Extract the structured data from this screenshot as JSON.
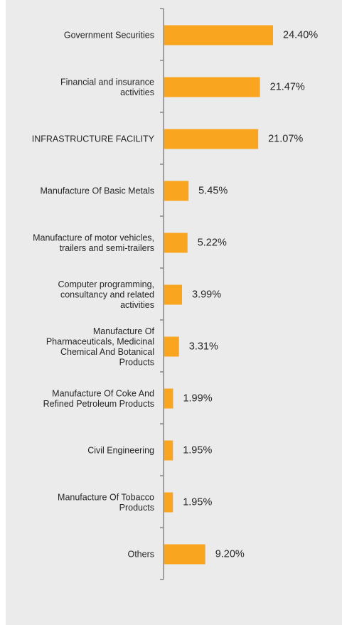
{
  "colors": {
    "bar": "#f9a51f",
    "axis": "#8c8c8c",
    "background": "#ebebeb",
    "text": "#262626"
  },
  "chart_data": {
    "type": "bar",
    "orientation": "horizontal",
    "categories": [
      [
        "Government Securities"
      ],
      [
        "Financial and insurance",
        "activities"
      ],
      [
        "INFRASTRUCTURE FACILITY"
      ],
      [
        "Manufacture Of Basic Metals"
      ],
      [
        "Manufacture of motor vehicles,",
        "trailers and semi-trailers"
      ],
      [
        "Computer programming,",
        "consultancy and related",
        "activities"
      ],
      [
        "Manufacture Of",
        "Pharmaceuticals, Medicinal",
        "Chemical And Botanical",
        "Products"
      ],
      [
        "Manufacture Of Coke And",
        "Refined Petroleum Products"
      ],
      [
        "Civil Engineering"
      ],
      [
        "Manufacture Of Tobacco",
        "Products"
      ],
      [
        "Others"
      ]
    ],
    "values": [
      24.4,
      21.47,
      21.07,
      5.45,
      5.22,
      3.99,
      3.31,
      1.99,
      1.95,
      1.95,
      9.2
    ],
    "value_labels": [
      "24.40%",
      "21.47%",
      "21.07%",
      "5.45%",
      "5.22%",
      "3.99%",
      "3.31%",
      "1.99%",
      "1.95%",
      "1.95%",
      "9.20%"
    ],
    "unit": "%",
    "xlim": [
      0,
      30
    ],
    "grid": false,
    "legend": "none"
  }
}
